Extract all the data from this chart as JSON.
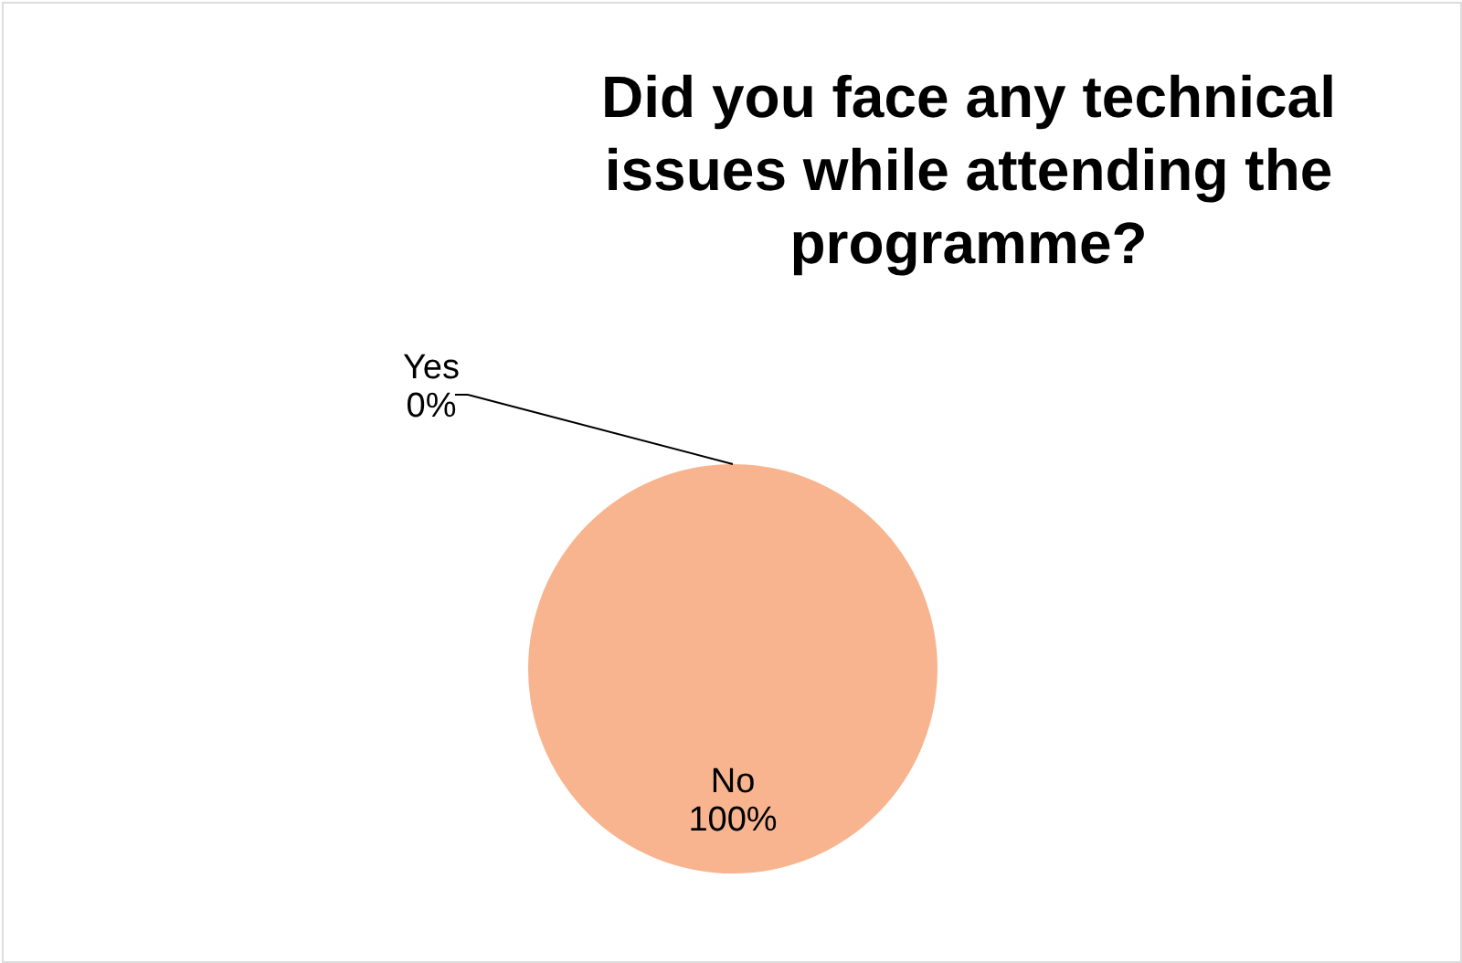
{
  "chart_data": {
    "type": "pie",
    "title": "Did you face any technical issues while attending the programme?",
    "categories": [
      "Yes",
      "No"
    ],
    "values": [
      0,
      100
    ],
    "colors": [
      "#ed7d31",
      "#f8b48f"
    ],
    "value_labels": [
      "0%",
      "100%"
    ],
    "legend": false
  }
}
